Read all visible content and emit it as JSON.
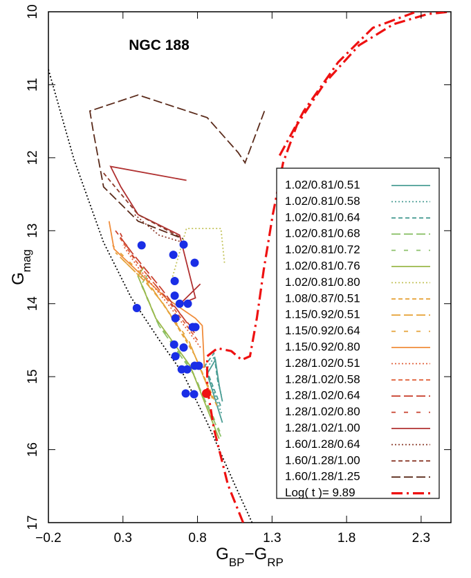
{
  "chart_data": {
    "type": "cmd",
    "title": "NGC 188",
    "xlabel": [
      {
        "text": "G"
      },
      {
        "text": "BP",
        "sub": true
      },
      {
        "text": "−"
      },
      {
        "text": "G"
      },
      {
        "text": "RP",
        "sub": true
      }
    ],
    "ylabel": [
      {
        "text": "G"
      },
      {
        "text": "mag",
        "sub": true
      }
    ],
    "xlim": [
      -0.2,
      2.5
    ],
    "xticks": [
      {
        "value": -0.2,
        "label": "−0.2"
      },
      0.3,
      0.8,
      1.3,
      1.8,
      2.3
    ],
    "ylim": [
      17,
      10
    ],
    "yticks": [
      10,
      11,
      12,
      13,
      14,
      15,
      16,
      17
    ],
    "tracks": [
      {
        "name": "1.02/0.81/0.51",
        "color": "#4a9d94",
        "style": "solid",
        "x": [
          0.967,
          0.865,
          0.92,
          0.948,
          0.967
        ],
        "y": [
          15.63,
          14.96,
          14.77,
          15.15,
          15.34
        ]
      },
      {
        "name": "1.02/0.81/0.58",
        "color": "#4a9d94",
        "style": "dotted",
        "x": [
          0.96,
          0.86,
          0.915,
          0.94,
          0.96
        ],
        "y": [
          15.5,
          14.9,
          14.72,
          15.1,
          15.25
        ]
      },
      {
        "name": "1.02/0.81/0.64",
        "color": "#4a9d94",
        "style": "dashed",
        "x": [
          0.955,
          0.85,
          0.91,
          0.935,
          0.955
        ],
        "y": [
          15.4,
          14.85,
          14.68,
          15.05,
          15.2
        ]
      },
      {
        "name": "1.02/0.81/0.68",
        "color": "#8dc26b",
        "style": "longdash",
        "x": [
          0.957,
          0.772,
          0.541,
          0.425,
          0.471
        ],
        "y": [
          15.82,
          14.96,
          14.3,
          13.73,
          13.59
        ]
      },
      {
        "name": "1.02/0.81/0.72",
        "color": "#8dc26b",
        "style": "sparse",
        "x": [
          0.95,
          0.76,
          0.53,
          0.41,
          0.45
        ],
        "y": [
          15.75,
          14.9,
          14.25,
          13.68,
          13.55
        ]
      },
      {
        "name": "1.02/0.81/0.76",
        "color": "#9ab84a",
        "style": "solid",
        "x": [
          0.945,
          0.75,
          0.52,
          0.4,
          0.44
        ],
        "y": [
          15.85,
          14.85,
          14.2,
          13.62,
          13.5
        ]
      },
      {
        "name": "1.02/0.81/0.80",
        "color": "#c3c35a",
        "style": "dotted",
        "x": [
          0.633,
          0.726,
          0.957,
          0.981
        ],
        "y": [
          13.63,
          12.97,
          12.97,
          13.44
        ]
      },
      {
        "name": "1.08/0.87/0.51",
        "color": "#e6a33a",
        "style": "dashed",
        "x": [
          0.93,
          0.78,
          0.6,
          0.5,
          0.3
        ],
        "y": [
          15.4,
          14.7,
          14.1,
          13.8,
          13.4
        ]
      },
      {
        "name": "1.15/0.92/0.51",
        "color": "#e6a33a",
        "style": "longdash",
        "x": [
          0.9,
          0.76,
          0.57,
          0.45,
          0.25
        ],
        "y": [
          15.3,
          14.6,
          14.0,
          13.7,
          13.3
        ]
      },
      {
        "name": "1.15/0.92/0.64",
        "color": "#e6a33a",
        "style": "sparse",
        "x": [
          0.88,
          0.74,
          0.55,
          0.43,
          0.23
        ],
        "y": [
          15.2,
          14.5,
          13.95,
          13.6,
          13.2
        ]
      },
      {
        "name": "1.15/0.92/0.80",
        "color": "#f08c3a",
        "style": "solid",
        "x": [
          0.207,
          0.24,
          0.587,
          0.786,
          0.832,
          0.846,
          0.795
        ],
        "y": [
          12.87,
          13.25,
          13.92,
          14.2,
          14.3,
          14.87,
          14.87
        ]
      },
      {
        "name": "1.28/1.02/0.51",
        "color": "#e0603a",
        "style": "dotted",
        "x": [
          0.82,
          0.6,
          0.4,
          0.3
        ],
        "y": [
          14.6,
          14.0,
          13.5,
          13.2
        ]
      },
      {
        "name": "1.28/1.02/0.58",
        "color": "#e0603a",
        "style": "dashed",
        "x": [
          0.8,
          0.58,
          0.38,
          0.28
        ],
        "y": [
          14.5,
          13.9,
          13.4,
          13.1
        ]
      },
      {
        "name": "1.28/1.02/0.64",
        "color": "#c8402e",
        "style": "longdash",
        "x": [
          0.78,
          0.56,
          0.36,
          0.25
        ],
        "y": [
          14.4,
          13.8,
          13.3,
          13.0
        ]
      },
      {
        "name": "1.28/1.02/0.80",
        "color": "#c8402e",
        "style": "sparse",
        "x": [
          0.75,
          0.5,
          0.35,
          0.26
        ],
        "y": [
          14.3,
          13.7,
          13.3,
          12.95
        ]
      },
      {
        "name": "1.28/1.02/1.00",
        "color": "#b03030",
        "style": "solid",
        "x": [
          0.726,
          0.217,
          0.286,
          0.402,
          0.68,
          0.786,
          0.68,
          0.819
        ],
        "y": [
          12.31,
          12.12,
          12.4,
          12.78,
          13.06,
          13.92,
          14.01,
          13.73
        ]
      },
      {
        "name": "1.60/1.28/0.64",
        "color": "#8b3a2a",
        "style": "dotted",
        "x": [
          0.379,
          0.541,
          0.703
        ],
        "y": [
          12.78,
          13.06,
          13.16
        ]
      },
      {
        "name": "1.60/1.28/1.00",
        "color": "#8b3a2a",
        "style": "dashed",
        "x": [
          0.17,
          0.402,
          0.703
        ],
        "y": [
          12.21,
          12.78,
          13.11
        ]
      },
      {
        "name": "1.60/1.28/1.25",
        "color": "#5a2a1a",
        "style": "longdash",
        "x": [
          1.249,
          1.119,
          1.073,
          0.865,
          0.402,
          0.078,
          0.101,
          0.17,
          0.402,
          0.703
        ],
        "y": [
          11.36,
          12.07,
          11.93,
          11.45,
          11.14,
          11.36,
          11.64,
          12.4,
          12.87,
          13.11
        ]
      }
    ],
    "isochrone": {
      "name": "Log( t )= 9.89",
      "color": "#ee1111",
      "style": "dashdot",
      "x": [
        1.106,
        1.004,
        0.911,
        0.865,
        0.865,
        0.934,
        1.027,
        1.096,
        1.152,
        1.198,
        1.244,
        1.305,
        1.374,
        1.467,
        1.652,
        1.883,
        2.115,
        2.346,
        2.494,
        null,
        1.351,
        1.513,
        1.744,
        1.976,
        2.254
      ],
      "y": [
        17.0,
        16.48,
        15.72,
        15.15,
        14.72,
        14.61,
        14.65,
        14.77,
        14.72,
        14.2,
        13.54,
        12.78,
        12.07,
        11.55,
        10.98,
        10.46,
        10.17,
        10.03,
        10.0,
        null,
        11.97,
        11.36,
        10.69,
        10.22,
        10.01
      ]
    },
    "zams": {
      "color": "#000000",
      "style": "dotted",
      "x": [
        -0.2,
        -0.029,
        0.17,
        0.356,
        0.541,
        0.703,
        0.865,
        1.05,
        1.166
      ],
      "y": [
        10.79,
        12.02,
        13.16,
        13.92,
        14.49,
        14.96,
        15.63,
        16.48,
        17.0
      ]
    },
    "stars": {
      "color": "#1a2ee6",
      "x": [
        0.425,
        0.638,
        0.707,
        0.781,
        0.647,
        0.393,
        0.647,
        0.68,
        0.735,
        0.652,
        0.768,
        0.786,
        0.643,
        0.707,
        0.652,
        0.694,
        0.731,
        0.781,
        0.809,
        0.721,
        0.777
      ],
      "y": [
        13.2,
        13.33,
        13.19,
        13.44,
        13.69,
        14.06,
        13.89,
        14.0,
        14.0,
        14.2,
        14.32,
        14.32,
        14.56,
        14.6,
        14.72,
        14.9,
        14.9,
        14.85,
        14.85,
        15.23,
        15.24
      ]
    },
    "highlight": {
      "color": "#ee1111",
      "x": 0.86,
      "y": 15.23
    }
  }
}
